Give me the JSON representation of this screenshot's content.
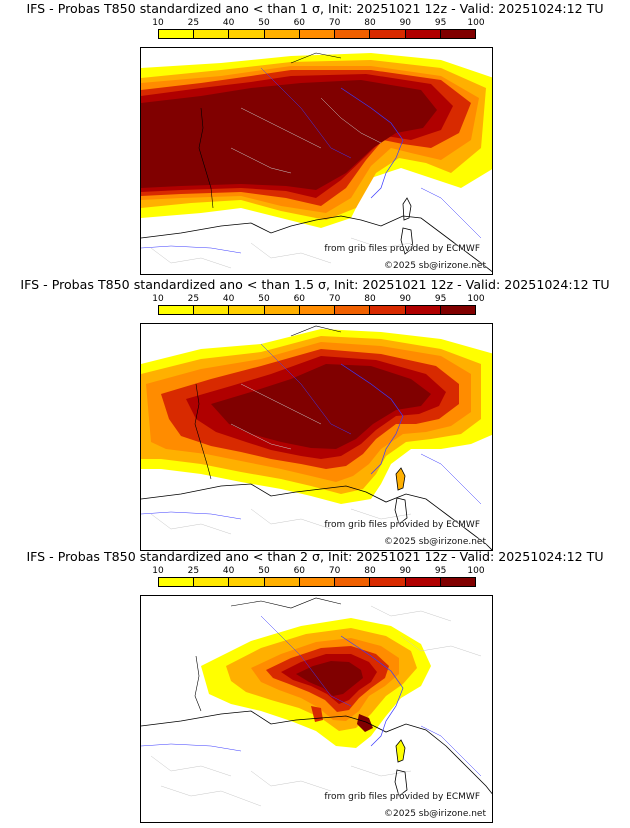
{
  "colorbar": {
    "ticks": [
      "10",
      "25",
      "40",
      "50",
      "60",
      "70",
      "80",
      "90",
      "95",
      "100"
    ],
    "colors": [
      "#ffff00",
      "#ffe800",
      "#ffd000",
      "#ffb000",
      "#ff8c00",
      "#f06000",
      "#d82a00",
      "#b00000",
      "#800000"
    ]
  },
  "panels": [
    {
      "title": "IFS - Probas T850  standardized ano < than 1 σ, Init: 20251021 12z - Valid: 20251024:12 TU",
      "source_credit": "from grib files provided by ECMWF",
      "copyright": "©2025 sb@irizone.net"
    },
    {
      "title": "IFS - Probas T850  standardized ano < than 1.5 σ, Init: 20251021 12z - Valid: 20251024:12 TU",
      "source_credit": "from grib files provided by ECMWF",
      "copyright": "©2025 sb@irizone.net"
    },
    {
      "title": "IFS - Probas T850  standardized ano < than 2 σ, Init: 20251021 12z - Valid: 20251024:12 TU",
      "source_credit": "from grib files provided by ECMWF",
      "copyright": "©2025 sb@irizone.net"
    }
  ]
}
